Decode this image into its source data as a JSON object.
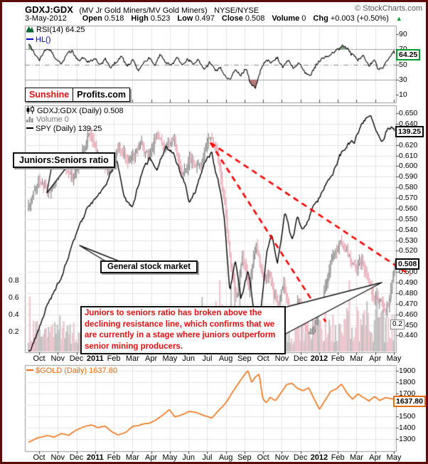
{
  "header": {
    "symbol": "GDXJ:GDX",
    "name": "(MV Jr Gold Miners/MV Gold Miners)",
    "exchange": "NYSE/NYSE",
    "credit": "© StockCharts.com",
    "date": "3-May-2012",
    "fields": [
      {
        "label": "Open",
        "value": "0.518"
      },
      {
        "label": "High",
        "value": "0.523"
      },
      {
        "label": "Low",
        "value": "0.497"
      },
      {
        "label": "Close",
        "value": "0.508"
      },
      {
        "label": "Volume",
        "value": "0"
      },
      {
        "label": "Chg",
        "value": "+0.003 (+0.50%)"
      }
    ],
    "chg_arrow": "▲"
  },
  "watermark": {
    "brand": "Sunshine",
    "suffix": "Profits.com"
  },
  "rsi_panel": {
    "legend": "RSI(14) 64.25",
    "overlay_legend": "HL()",
    "last_badge": "64.25"
  },
  "main_panel": {
    "legend_price": "GDXJ:GDX (Daily) 0.508",
    "legend_volume": "Volume 0",
    "legend_spy": "SPY (Daily) 139.25",
    "spy_badge": "139.25",
    "price_badge": "0.508",
    "volume_badge": "0.2",
    "callout_ratio": "Juniors:Seniors ratio",
    "callout_spy": "General stock market",
    "note": "Juniors to seniors ratio has broken above the declining resistance line, which confirms that we are currently in a stage where juniors outperform senior mining producers."
  },
  "gold_panel": {
    "legend": "$GOLD (Daily) 1637.80",
    "last_badge": "1637.80"
  },
  "xticks": [
    "Oct",
    "Nov",
    "Dec",
    "2011",
    "Feb",
    "Mar",
    "Apr",
    "May",
    "Jun",
    "Jul",
    "Aug",
    "Sep",
    "Oct",
    "Nov",
    "Dec",
    "2012",
    "Feb",
    "Mar",
    "Apr",
    "May"
  ],
  "colors": {
    "frame": "#5c0b0b",
    "grid": "#e3e3e3",
    "panel_border": "#999999",
    "candle_up": "#a6a6a6",
    "candle_up_wick": "#6f6f6f",
    "candle_down": "#f0b6c2",
    "candle_down_wick": "#dd93a3",
    "vol_up": "#c2c2c2",
    "vol_down": "#eec6cf",
    "spy_line": "#000000",
    "gold_line": "#ef7013",
    "rsi_line": "#000000",
    "rsi_over_fill": "#86a785",
    "rsi_under_fill": "#b57a7a",
    "resistance": "#ff0000",
    "note_text": "#e01010",
    "badge_green": "#009933"
  },
  "chart_data": [
    {
      "panel": "rsi",
      "type": "line",
      "name": "RSI(14)",
      "ylim": [
        0,
        100
      ],
      "yticks": [
        90,
        70,
        50,
        30,
        10
      ],
      "bands": {
        "overbought": 70,
        "midline": 50,
        "oversold": 30
      },
      "last": 64.25,
      "points": [
        [
          0,
          78
        ],
        [
          0.015,
          66
        ],
        [
          0.03,
          58
        ],
        [
          0.045,
          70
        ],
        [
          0.06,
          73
        ],
        [
          0.075,
          60
        ],
        [
          0.09,
          55
        ],
        [
          0.105,
          67
        ],
        [
          0.12,
          72
        ],
        [
          0.135,
          58
        ],
        [
          0.15,
          63
        ],
        [
          0.165,
          55
        ],
        [
          0.18,
          60
        ],
        [
          0.195,
          48
        ],
        [
          0.21,
          58
        ],
        [
          0.225,
          44
        ],
        [
          0.24,
          54
        ],
        [
          0.255,
          60
        ],
        [
          0.27,
          47
        ],
        [
          0.285,
          56
        ],
        [
          0.3,
          44
        ],
        [
          0.315,
          52
        ],
        [
          0.33,
          58
        ],
        [
          0.345,
          48
        ],
        [
          0.36,
          60
        ],
        [
          0.375,
          50
        ],
        [
          0.39,
          44
        ],
        [
          0.405,
          55
        ],
        [
          0.42,
          47
        ],
        [
          0.435,
          56
        ],
        [
          0.45,
          49
        ],
        [
          0.465,
          57
        ],
        [
          0.48,
          46
        ],
        [
          0.495,
          54
        ],
        [
          0.51,
          44
        ],
        [
          0.525,
          50
        ],
        [
          0.535,
          36
        ],
        [
          0.55,
          30
        ],
        [
          0.565,
          42
        ],
        [
          0.58,
          35
        ],
        [
          0.595,
          44
        ],
        [
          0.605,
          24
        ],
        [
          0.62,
          20
        ],
        [
          0.635,
          45
        ],
        [
          0.65,
          55
        ],
        [
          0.665,
          48
        ],
        [
          0.68,
          56
        ],
        [
          0.695,
          44
        ],
        [
          0.71,
          52
        ],
        [
          0.725,
          40
        ],
        [
          0.74,
          50
        ],
        [
          0.755,
          36
        ],
        [
          0.77,
          32
        ],
        [
          0.785,
          46
        ],
        [
          0.8,
          55
        ],
        [
          0.815,
          60
        ],
        [
          0.83,
          65
        ],
        [
          0.845,
          70
        ],
        [
          0.86,
          74
        ],
        [
          0.875,
          68
        ],
        [
          0.89,
          60
        ],
        [
          0.9,
          52
        ],
        [
          0.915,
          58
        ],
        [
          0.93,
          44
        ],
        [
          0.945,
          52
        ],
        [
          0.955,
          40
        ],
        [
          0.97,
          46
        ],
        [
          0.985,
          55
        ],
        [
          1,
          64.25
        ]
      ]
    },
    {
      "panel": "main",
      "type": "candlestick",
      "name": "GDXJ:GDX ratio",
      "ylim": [
        0.44,
        0.65
      ],
      "yticks": [
        "0.650",
        "0.640",
        "0.630",
        "0.620",
        "0.610",
        "0.600",
        "0.590",
        "0.580",
        "0.570",
        "0.560",
        "0.550",
        "0.540",
        "0.530",
        "0.520",
        "0.510",
        "0.500",
        "0.490",
        "0.480",
        "0.470",
        "0.460",
        "0.450",
        "0.440"
      ],
      "last": 0.508,
      "trend": [
        [
          0,
          0.562
        ],
        [
          0.03,
          0.585
        ],
        [
          0.06,
          0.572
        ],
        [
          0.09,
          0.596
        ],
        [
          0.12,
          0.588
        ],
        [
          0.145,
          0.612
        ],
        [
          0.165,
          0.628
        ],
        [
          0.19,
          0.602
        ],
        [
          0.215,
          0.59
        ],
        [
          0.245,
          0.617
        ],
        [
          0.275,
          0.605
        ],
        [
          0.305,
          0.625
        ],
        [
          0.33,
          0.615
        ],
        [
          0.35,
          0.638
        ],
        [
          0.37,
          0.618
        ],
        [
          0.395,
          0.632
        ],
        [
          0.42,
          0.6
        ],
        [
          0.445,
          0.612
        ],
        [
          0.47,
          0.602
        ],
        [
          0.497,
          0.622
        ],
        [
          0.515,
          0.605
        ],
        [
          0.535,
          0.558
        ],
        [
          0.553,
          0.497
        ],
        [
          0.568,
          0.468
        ],
        [
          0.585,
          0.508
        ],
        [
          0.602,
          0.478
        ],
        [
          0.62,
          0.518
        ],
        [
          0.64,
          0.49
        ],
        [
          0.658,
          0.502
        ],
        [
          0.678,
          0.476
        ],
        [
          0.698,
          0.496
        ],
        [
          0.718,
          0.46
        ],
        [
          0.738,
          0.482
        ],
        [
          0.758,
          0.452
        ],
        [
          0.775,
          0.445
        ],
        [
          0.8,
          0.473
        ],
        [
          0.825,
          0.502
        ],
        [
          0.85,
          0.523
        ],
        [
          0.872,
          0.512
        ],
        [
          0.89,
          0.497
        ],
        [
          0.91,
          0.504
        ],
        [
          0.93,
          0.482
        ],
        [
          0.952,
          0.471
        ],
        [
          0.972,
          0.462
        ],
        [
          0.986,
          0.47
        ],
        [
          1,
          0.508
        ]
      ],
      "resistance_lines": [
        [
          [
            0.497,
            0.622
          ],
          [
            1.043,
            0.497
          ]
        ],
        [
          [
            0.497,
            0.622
          ],
          [
            0.812,
            0.453
          ]
        ]
      ]
    },
    {
      "panel": "main",
      "type": "line",
      "name": "SPY",
      "last": 139.25,
      "points": [
        [
          0,
          104
        ],
        [
          0.03,
          108
        ],
        [
          0.06,
          112
        ],
        [
          0.09,
          116
        ],
        [
          0.12,
          121
        ],
        [
          0.16,
          126
        ],
        [
          0.19,
          128
        ],
        [
          0.22,
          131
        ],
        [
          0.24,
          134
        ],
        [
          0.26,
          130
        ],
        [
          0.285,
          127
        ],
        [
          0.31,
          132
        ],
        [
          0.33,
          134
        ],
        [
          0.35,
          132
        ],
        [
          0.375,
          136
        ],
        [
          0.4,
          135
        ],
        [
          0.42,
          132
        ],
        [
          0.44,
          128
        ],
        [
          0.46,
          130
        ],
        [
          0.48,
          134
        ],
        [
          0.5,
          135
        ],
        [
          0.52,
          130
        ],
        [
          0.535,
          125
        ],
        [
          0.55,
          113
        ],
        [
          0.565,
          118
        ],
        [
          0.58,
          112
        ],
        [
          0.6,
          117
        ],
        [
          0.615,
          110
        ],
        [
          0.63,
          107
        ],
        [
          0.65,
          119
        ],
        [
          0.665,
          123
        ],
        [
          0.68,
          118
        ],
        [
          0.7,
          126
        ],
        [
          0.72,
          121
        ],
        [
          0.735,
          125
        ],
        [
          0.75,
          123
        ],
        [
          0.77,
          126
        ],
        [
          0.79,
          128
        ],
        [
          0.81,
          130
        ],
        [
          0.83,
          132
        ],
        [
          0.85,
          135
        ],
        [
          0.87,
          136
        ],
        [
          0.89,
          137
        ],
        [
          0.905,
          139
        ],
        [
          0.92,
          140
        ],
        [
          0.935,
          140.5
        ],
        [
          0.95,
          138
        ],
        [
          0.965,
          137
        ],
        [
          0.98,
          139
        ],
        [
          1,
          139.25
        ]
      ]
    },
    {
      "panel": "main",
      "type": "bar",
      "name": "Volume",
      "yticks_left": [
        "0.8",
        "0.6",
        "0.4",
        "0.2"
      ],
      "last": 0.2
    },
    {
      "panel": "gold",
      "type": "line",
      "name": "$GOLD",
      "ylim": [
        1300,
        1900
      ],
      "yticks": [
        1900,
        1800,
        1700,
        1600,
        1500,
        1400,
        1300
      ],
      "last": 1637.8,
      "points": [
        [
          0,
          1272
        ],
        [
          0.025,
          1310
        ],
        [
          0.05,
          1330
        ],
        [
          0.07,
          1318
        ],
        [
          0.09,
          1355
        ],
        [
          0.11,
          1340
        ],
        [
          0.13,
          1385
        ],
        [
          0.15,
          1405
        ],
        [
          0.17,
          1420
        ],
        [
          0.19,
          1395
        ],
        [
          0.21,
          1410
        ],
        [
          0.225,
          1370
        ],
        [
          0.245,
          1330
        ],
        [
          0.265,
          1355
        ],
        [
          0.285,
          1410
        ],
        [
          0.31,
          1430
        ],
        [
          0.33,
          1440
        ],
        [
          0.35,
          1475
        ],
        [
          0.37,
          1520
        ],
        [
          0.385,
          1560
        ],
        [
          0.4,
          1495
        ],
        [
          0.42,
          1515
        ],
        [
          0.44,
          1540
        ],
        [
          0.46,
          1530
        ],
        [
          0.48,
          1505
        ],
        [
          0.5,
          1485
        ],
        [
          0.52,
          1555
        ],
        [
          0.54,
          1620
        ],
        [
          0.56,
          1720
        ],
        [
          0.575,
          1790
        ],
        [
          0.59,
          1860
        ],
        [
          0.6,
          1898
        ],
        [
          0.61,
          1790
        ],
        [
          0.62,
          1840
        ],
        [
          0.63,
          1865
        ],
        [
          0.64,
          1650
        ],
        [
          0.65,
          1620
        ],
        [
          0.66,
          1670
        ],
        [
          0.675,
          1640
        ],
        [
          0.69,
          1710
        ],
        [
          0.705,
          1780
        ],
        [
          0.72,
          1790
        ],
        [
          0.735,
          1740
        ],
        [
          0.75,
          1720
        ],
        [
          0.765,
          1745
        ],
        [
          0.78,
          1650
        ],
        [
          0.795,
          1560
        ],
        [
          0.81,
          1640
        ],
        [
          0.825,
          1720
        ],
        [
          0.84,
          1740
        ],
        [
          0.855,
          1780
        ],
        [
          0.87,
          1700
        ],
        [
          0.885,
          1650
        ],
        [
          0.9,
          1690
        ],
        [
          0.915,
          1660
        ],
        [
          0.93,
          1630
        ],
        [
          0.945,
          1670
        ],
        [
          0.96,
          1640
        ],
        [
          0.975,
          1660
        ],
        [
          0.99,
          1650
        ],
        [
          1,
          1637.8
        ]
      ]
    }
  ]
}
